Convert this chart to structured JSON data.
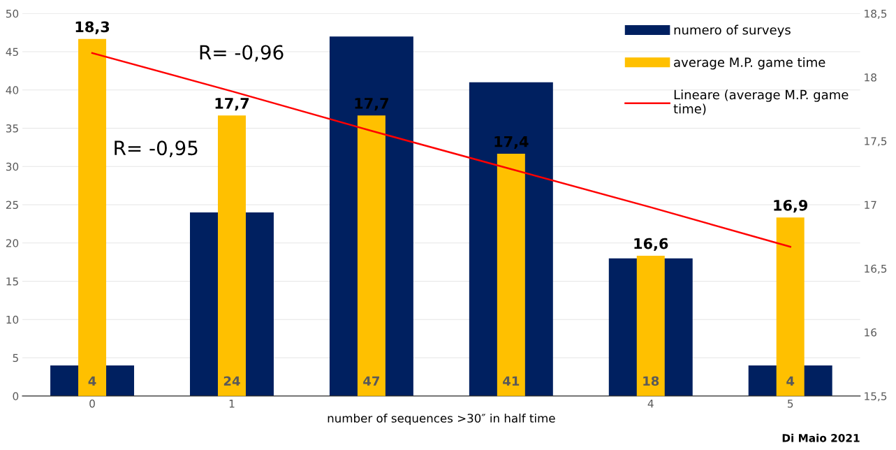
{
  "chart_data": {
    "type": "bar",
    "xlabel": "number of sequences >30″ in half time",
    "categories": [
      "0",
      "1",
      null,
      null,
      "4",
      "5"
    ],
    "series": [
      {
        "name": "numero of surveys",
        "color": "#002060",
        "values": [
          4,
          24,
          47,
          41,
          18,
          4
        ],
        "value_labels": [
          "4",
          "24",
          "47",
          "41",
          "18",
          "4"
        ]
      },
      {
        "name": "average M.P. game time",
        "type": "bar",
        "axis": "y2",
        "color": "#ffc000",
        "values": [
          18.3,
          17.7,
          17.7,
          17.4,
          16.6,
          16.9
        ],
        "value_labels": [
          "18,3",
          "17,7",
          "17,7",
          "17,4",
          "16,6",
          "16,9"
        ]
      },
      {
        "name": "Lineare (average M.P. game time)",
        "type": "line",
        "axis": "y2",
        "color": "#ff0000",
        "values": [
          18.19,
          17.89,
          17.58,
          17.28,
          16.98,
          16.67
        ]
      }
    ],
    "ylim": [
      0,
      50
    ],
    "yticks": [
      0,
      5,
      10,
      15,
      20,
      25,
      30,
      35,
      40,
      45,
      50
    ],
    "y2lim": [
      15.5,
      18.5
    ],
    "y2ticks": [
      {
        "value": 15.5,
        "label": "15,5"
      },
      16,
      {
        "value": 16.5,
        "label": "16,5"
      },
      17,
      {
        "value": 17.5,
        "label": "17,5"
      },
      18,
      {
        "value": 18.5,
        "label": "18,5"
      }
    ],
    "grid": "y",
    "legend": "top right",
    "marker": "none",
    "line_style": "solid",
    "annotations": [
      "R= -0,96",
      "R= -0,95",
      "Di Maio 2021"
    ]
  }
}
